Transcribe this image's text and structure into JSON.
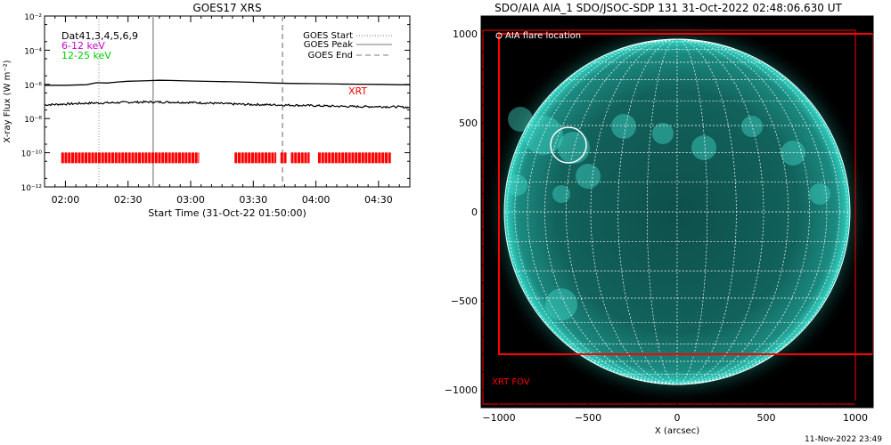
{
  "chart_data": [
    {
      "type": "line",
      "title": "GOES17 XRS",
      "xlabel": "Start Time (31-Oct-22 01:50:00)",
      "ylabel": "X-ray Flux (W m⁻²)",
      "ylog": true,
      "ylim_exp": [
        -12,
        -2
      ],
      "x_range_min": [
        0,
        175
      ],
      "x_ticks": [
        {
          "min": 10,
          "label": "02:00"
        },
        {
          "min": 40,
          "label": "02:30"
        },
        {
          "min": 70,
          "label": "03:00"
        },
        {
          "min": 100,
          "label": "03:30"
        },
        {
          "min": 130,
          "label": "04:00"
        },
        {
          "min": 160,
          "label": "04:30"
        }
      ],
      "y_ticks": [
        {
          "exp": -2,
          "label": "10⁻²"
        },
        {
          "exp": -4,
          "label": "10⁻⁴"
        },
        {
          "exp": -6,
          "label": "10⁻⁶"
        },
        {
          "exp": -8,
          "label": "10⁻⁸"
        },
        {
          "exp": -10,
          "label": "10⁻¹⁰"
        },
        {
          "exp": -12,
          "label": "10⁻¹²"
        }
      ],
      "channel_labels": [
        {
          "text": "Dat41,3,4,5,6,9",
          "color": "#000000"
        },
        {
          "text": "6-12 keV",
          "color": "#cc00cc"
        },
        {
          "text": "12-25 keV",
          "color": "#00cc00"
        }
      ],
      "legend": {
        "placement": "top-right",
        "items": [
          {
            "label": "GOES Start",
            "style": "dotted",
            "min": 26
          },
          {
            "label": "GOES Peak",
            "style": "solid",
            "min": 52
          },
          {
            "label": "GOES End",
            "style": "dashed",
            "min": 114
          }
        ]
      },
      "series": [
        {
          "name": "",
          "color": "#000000",
          "x": [
            0,
            10,
            20,
            25,
            30,
            35,
            40,
            45,
            50,
            55,
            60,
            70,
            80,
            90,
            100,
            110,
            120,
            130,
            140,
            150,
            160,
            170,
            175
          ],
          "y": [
            -6.05,
            -6.05,
            -6.02,
            -5.9,
            -5.92,
            -5.86,
            -5.82,
            -5.8,
            -5.78,
            -5.76,
            -5.77,
            -5.8,
            -5.83,
            -5.85,
            -5.88,
            -5.92,
            -5.95,
            -5.96,
            -5.98,
            -5.99,
            -6.0,
            -6.02,
            -6.02
          ]
        },
        {
          "name": "",
          "color": "#000000",
          "noisy": true,
          "x": [
            0,
            10,
            20,
            30,
            40,
            50,
            60,
            70,
            80,
            90,
            100,
            110,
            120,
            130,
            140,
            150,
            160,
            170,
            175
          ],
          "y": [
            -7.2,
            -7.15,
            -7.1,
            -7.08,
            -7.05,
            -7.03,
            -7.04,
            -7.06,
            -7.1,
            -7.15,
            -7.18,
            -7.2,
            -7.22,
            -7.25,
            -7.28,
            -7.3,
            -7.3,
            -7.32,
            -7.35
          ]
        }
      ],
      "xrt_label": "XRT",
      "xrt_coverage_color": "#ff0000",
      "xrt_coverage_min": [
        [
          8,
          74
        ],
        [
          91,
          111
        ],
        [
          113,
          116
        ],
        [
          118,
          127
        ],
        [
          131,
          166
        ]
      ]
    },
    {
      "type": "heatmap",
      "title": "SDO/AIA AIA_1 SDO/JSOC-SDP 131 31-Oct-2022 02:48:06.630 UT",
      "xlabel": "X (arcsec)",
      "ylabel": "",
      "xlim": [
        -1100,
        1100
      ],
      "ylim": [
        -1100,
        1100
      ],
      "x_ticks": [
        -1000,
        -500,
        0,
        500,
        1000
      ],
      "y_ticks": [
        1000,
        500,
        0,
        -500,
        -1000
      ],
      "x_tick_labels": [
        "−1000",
        "−500",
        "0",
        "500",
        "1000"
      ],
      "y_tick_labels": [
        "1000",
        "500",
        "0",
        "−500",
        "−1000"
      ],
      "solar_radius_arcsec": 970,
      "grid_spacing_deg": 10,
      "disk_color": "#0f5a55",
      "limb_glow_color": "#26e6d6",
      "flare_location": {
        "x": -610,
        "y": 375,
        "radius": 100,
        "label": "AIA flare location"
      },
      "xrt_fov": {
        "x0": -1000,
        "x1": 1100,
        "y0": -800,
        "y1": 1000,
        "label": "XRT FOV",
        "color": "#ff0000"
      },
      "outer_box": {
        "x0": -1090,
        "x1": 1000,
        "y0": -1080,
        "y1": 1020
      },
      "generated": "11-Nov-2022 23:49"
    }
  ]
}
